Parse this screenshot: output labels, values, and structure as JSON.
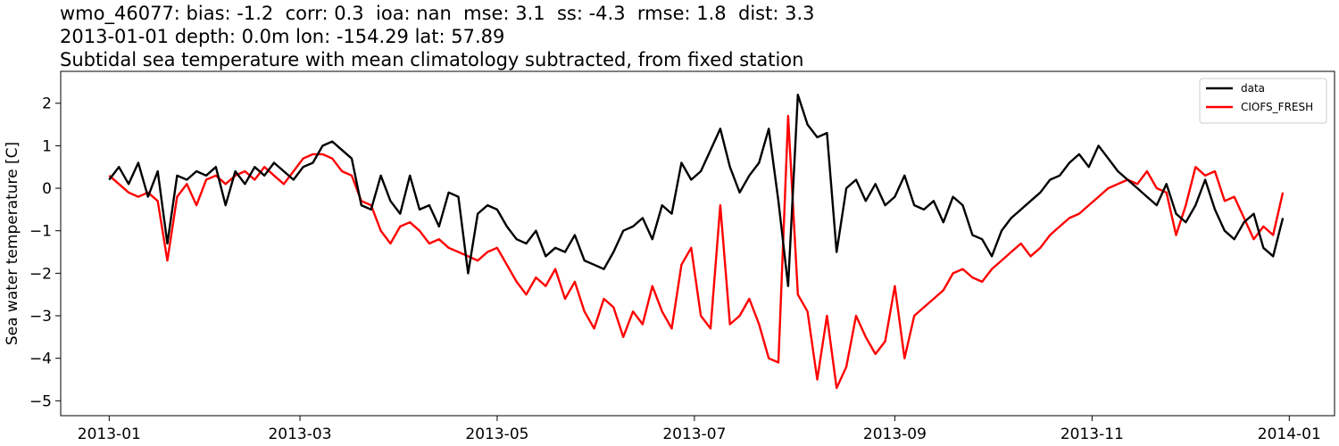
{
  "header": {
    "line1": "wmo_46077: bias: -1.2  corr: 0.3  ioa: nan  mse: 3.1  ss: -4.3  rmse: 1.8  dist: 3.3",
    "line2": "2013-01-01 depth: 0.0m lon: -154.29 lat: 57.89",
    "line3": "Subtidal sea temperature with mean climatology subtracted, from fixed station"
  },
  "chart_data": {
    "type": "line",
    "title": "Subtidal sea temperature with mean climatology subtracted, from fixed station",
    "xlabel": "",
    "ylabel": "Sea water temperature [C]",
    "xlim": [
      "2012-12-17",
      "2014-01-15"
    ],
    "ylim": [
      -5.35,
      2.75
    ],
    "x_ticks": [
      "2013-01",
      "2013-03",
      "2013-05",
      "2013-07",
      "2013-09",
      "2013-11",
      "2014-01"
    ],
    "y_ticks": [
      2,
      1,
      0,
      -1,
      -2,
      -3,
      -4,
      -5
    ],
    "y_tick_labels": [
      "2",
      "1",
      "0",
      "−1",
      "−2",
      "−3",
      "−4",
      "−5"
    ],
    "legend": {
      "position": "top-right",
      "entries": [
        "data",
        "CIOFS_FRESH"
      ]
    },
    "grid": false,
    "series": [
      {
        "name": "data",
        "color": "#000000",
        "x": [
          "2013-01-01",
          "2013-01-04",
          "2013-01-07",
          "2013-01-10",
          "2013-01-13",
          "2013-01-16",
          "2013-01-19",
          "2013-01-22",
          "2013-01-25",
          "2013-01-28",
          "2013-01-31",
          "2013-02-03",
          "2013-02-06",
          "2013-02-09",
          "2013-02-12",
          "2013-02-15",
          "2013-02-18",
          "2013-02-21",
          "2013-02-24",
          "2013-02-27",
          "2013-03-02",
          "2013-03-05",
          "2013-03-08",
          "2013-03-11",
          "2013-03-14",
          "2013-03-17",
          "2013-03-20",
          "2013-03-23",
          "2013-03-26",
          "2013-03-29",
          "2013-04-01",
          "2013-04-04",
          "2013-04-07",
          "2013-04-10",
          "2013-04-13",
          "2013-04-16",
          "2013-04-19",
          "2013-04-22",
          "2013-04-25",
          "2013-04-28",
          "2013-05-01",
          "2013-05-04",
          "2013-05-07",
          "2013-05-10",
          "2013-05-13",
          "2013-05-16",
          "2013-05-19",
          "2013-05-22",
          "2013-05-25",
          "2013-05-28",
          "2013-05-31",
          "2013-06-03",
          "2013-06-06",
          "2013-06-09",
          "2013-06-12",
          "2013-06-15",
          "2013-06-18",
          "2013-06-21",
          "2013-06-24",
          "2013-06-27",
          "2013-06-30",
          "2013-07-03",
          "2013-07-06",
          "2013-07-09",
          "2013-07-12",
          "2013-07-15",
          "2013-07-18",
          "2013-07-21",
          "2013-07-24",
          "2013-07-27",
          "2013-07-30",
          "2013-08-02",
          "2013-08-05",
          "2013-08-08",
          "2013-08-11",
          "2013-08-14",
          "2013-08-17",
          "2013-08-20",
          "2013-08-23",
          "2013-08-26",
          "2013-08-29",
          "2013-09-01",
          "2013-09-04",
          "2013-09-07",
          "2013-09-10",
          "2013-09-13",
          "2013-09-16",
          "2013-09-19",
          "2013-09-22",
          "2013-09-25",
          "2013-09-28",
          "2013-10-01",
          "2013-10-04",
          "2013-10-07",
          "2013-10-10",
          "2013-10-13",
          "2013-10-16",
          "2013-10-19",
          "2013-10-22",
          "2013-10-25",
          "2013-10-28",
          "2013-10-31",
          "2013-11-03",
          "2013-11-06",
          "2013-11-09",
          "2013-11-12",
          "2013-11-15",
          "2013-11-18",
          "2013-11-21",
          "2013-11-24",
          "2013-11-27",
          "2013-11-30",
          "2013-12-03",
          "2013-12-06",
          "2013-12-09",
          "2013-12-12",
          "2013-12-15",
          "2013-12-18",
          "2013-12-21",
          "2013-12-24",
          "2013-12-27",
          "2013-12-30"
        ],
        "values": [
          0.2,
          0.5,
          0.1,
          0.6,
          -0.2,
          0.4,
          -1.3,
          0.3,
          0.2,
          0.4,
          0.3,
          0.5,
          -0.4,
          0.4,
          0.1,
          0.5,
          0.3,
          0.6,
          0.4,
          0.2,
          0.5,
          0.6,
          1.0,
          1.1,
          0.9,
          0.7,
          -0.4,
          -0.5,
          0.3,
          -0.3,
          -0.6,
          0.3,
          -0.5,
          -0.4,
          -0.9,
          -0.1,
          -0.2,
          -2.0,
          -0.6,
          -0.4,
          -0.5,
          -0.9,
          -1.2,
          -1.3,
          -1.0,
          -1.6,
          -1.4,
          -1.5,
          -1.1,
          -1.7,
          -1.8,
          -1.9,
          -1.5,
          -1.0,
          -0.9,
          -0.7,
          -1.2,
          -0.4,
          -0.6,
          0.6,
          0.2,
          0.4,
          0.9,
          1.4,
          0.5,
          -0.1,
          0.3,
          0.6,
          1.4,
          -0.3,
          -2.3,
          2.2,
          1.5,
          1.2,
          1.3,
          -1.5,
          0.0,
          0.2,
          -0.3,
          0.1,
          -0.4,
          -0.2,
          0.3,
          -0.4,
          -0.5,
          -0.3,
          -0.8,
          -0.2,
          -0.4,
          -1.1,
          -1.2,
          -1.6,
          -1.0,
          -0.7,
          -0.5,
          -0.3,
          -0.1,
          0.2,
          0.3,
          0.6,
          0.8,
          0.5,
          1.0,
          0.7,
          0.4,
          0.2,
          0.0,
          -0.2,
          -0.4,
          0.1,
          -0.6,
          -0.8,
          -0.4,
          0.2,
          -0.5,
          -1.0,
          -1.2,
          -0.8,
          -0.6,
          -1.4,
          -1.6,
          -0.7
        ]
      },
      {
        "name": "CIOFS_FRESH",
        "color": "#ff0000",
        "x": [
          "2013-01-01",
          "2013-01-04",
          "2013-01-07",
          "2013-01-10",
          "2013-01-13",
          "2013-01-16",
          "2013-01-19",
          "2013-01-22",
          "2013-01-25",
          "2013-01-28",
          "2013-01-31",
          "2013-02-03",
          "2013-02-06",
          "2013-02-09",
          "2013-02-12",
          "2013-02-15",
          "2013-02-18",
          "2013-02-21",
          "2013-02-24",
          "2013-02-27",
          "2013-03-02",
          "2013-03-05",
          "2013-03-08",
          "2013-03-11",
          "2013-03-14",
          "2013-03-17",
          "2013-03-20",
          "2013-03-23",
          "2013-03-26",
          "2013-03-29",
          "2013-04-01",
          "2013-04-04",
          "2013-04-07",
          "2013-04-10",
          "2013-04-13",
          "2013-04-16",
          "2013-04-19",
          "2013-04-22",
          "2013-04-25",
          "2013-04-28",
          "2013-05-01",
          "2013-05-04",
          "2013-05-07",
          "2013-05-10",
          "2013-05-13",
          "2013-05-16",
          "2013-05-19",
          "2013-05-22",
          "2013-05-25",
          "2013-05-28",
          "2013-05-31",
          "2013-06-03",
          "2013-06-06",
          "2013-06-09",
          "2013-06-12",
          "2013-06-15",
          "2013-06-18",
          "2013-06-21",
          "2013-06-24",
          "2013-06-27",
          "2013-06-30",
          "2013-07-03",
          "2013-07-06",
          "2013-07-09",
          "2013-07-12",
          "2013-07-15",
          "2013-07-18",
          "2013-07-21",
          "2013-07-24",
          "2013-07-27",
          "2013-07-30",
          "2013-08-02",
          "2013-08-05",
          "2013-08-08",
          "2013-08-11",
          "2013-08-14",
          "2013-08-17",
          "2013-08-20",
          "2013-08-23",
          "2013-08-26",
          "2013-08-29",
          "2013-09-01",
          "2013-09-04",
          "2013-09-07",
          "2013-09-10",
          "2013-09-13",
          "2013-09-16",
          "2013-09-19",
          "2013-09-22",
          "2013-09-25",
          "2013-09-28",
          "2013-10-01",
          "2013-10-04",
          "2013-10-07",
          "2013-10-10",
          "2013-10-13",
          "2013-10-16",
          "2013-10-19",
          "2013-10-22",
          "2013-10-25",
          "2013-10-28",
          "2013-10-31",
          "2013-11-03",
          "2013-11-06",
          "2013-11-09",
          "2013-11-12",
          "2013-11-15",
          "2013-11-18",
          "2013-11-21",
          "2013-11-24",
          "2013-11-27",
          "2013-11-30",
          "2013-12-03",
          "2013-12-06",
          "2013-12-09",
          "2013-12-12",
          "2013-12-15",
          "2013-12-18",
          "2013-12-21",
          "2013-12-24",
          "2013-12-27",
          "2013-12-30"
        ],
        "values": [
          0.3,
          0.1,
          -0.1,
          -0.2,
          -0.1,
          -0.3,
          -1.7,
          -0.2,
          0.1,
          -0.4,
          0.2,
          0.3,
          0.1,
          0.3,
          0.4,
          0.2,
          0.5,
          0.3,
          0.1,
          0.4,
          0.7,
          0.8,
          0.8,
          0.7,
          0.4,
          0.3,
          -0.3,
          -0.4,
          -1.0,
          -1.3,
          -0.9,
          -0.8,
          -1.0,
          -1.3,
          -1.2,
          -1.4,
          -1.5,
          -1.6,
          -1.7,
          -1.5,
          -1.4,
          -1.8,
          -2.2,
          -2.5,
          -2.1,
          -2.3,
          -1.9,
          -2.6,
          -2.2,
          -2.9,
          -3.3,
          -2.6,
          -2.8,
          -3.5,
          -2.9,
          -3.2,
          -2.3,
          -2.9,
          -3.3,
          -1.8,
          -1.4,
          -3.0,
          -3.3,
          -0.4,
          -3.2,
          -3.0,
          -2.6,
          -3.2,
          -4.0,
          -4.1,
          1.7,
          -2.5,
          -2.9,
          -4.5,
          -3.0,
          -4.7,
          -4.2,
          -3.0,
          -3.5,
          -3.9,
          -3.6,
          -2.3,
          -4.0,
          -3.0,
          -2.8,
          -2.6,
          -2.4,
          -2.0,
          -1.9,
          -2.1,
          -2.2,
          -1.9,
          -1.7,
          -1.5,
          -1.3,
          -1.6,
          -1.4,
          -1.1,
          -0.9,
          -0.7,
          -0.6,
          -0.4,
          -0.2,
          0.0,
          0.1,
          0.2,
          0.1,
          0.4,
          0.0,
          -0.1,
          -1.1,
          -0.4,
          0.5,
          0.3,
          0.4,
          -0.3,
          -0.2,
          -0.7,
          -1.2,
          -0.9,
          -1.1,
          -0.1
        ]
      }
    ]
  }
}
